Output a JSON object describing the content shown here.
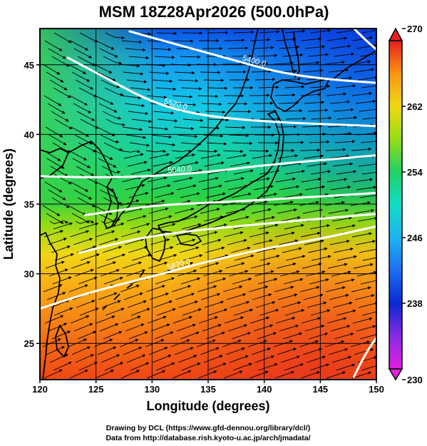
{
  "chart_data": {
    "type": "heatmap",
    "title": "MSM 18Z28Apr2026 (500.0hPa)",
    "xlabel": "Longitude (degrees)",
    "ylabel": "Latitude  (degrees)",
    "xlim": [
      120,
      150
    ],
    "ylim": [
      22.4,
      47.6
    ],
    "x_ticks": [
      120,
      125,
      130,
      135,
      140,
      145,
      150
    ],
    "y_ticks": [
      25,
      30,
      35,
      40,
      45
    ],
    "grid": true,
    "colorbar": {
      "min": 230,
      "max": 270,
      "ticks": [
        230,
        238,
        246,
        254,
        262,
        270
      ],
      "placement": "right",
      "colors": [
        "#e020e0",
        "#8a2be2",
        "#0a28d2",
        "#1e6ef0",
        "#1eb4f0",
        "#14dcc8",
        "#1ed264",
        "#96dc14",
        "#f0d714",
        "#fa9614",
        "#f55514",
        "#e61e1e"
      ]
    },
    "contours": [
      {
        "label": "5400.0",
        "lat": [
          47.4,
          46.5,
          45.4,
          44.5,
          44.0,
          43.7
        ],
        "lon": [
          128.0,
          132.0,
          137.0,
          141.0,
          145.0,
          150.0
        ]
      },
      {
        "label": "5520.0",
        "lat": [
          45.5,
          44.0,
          42.3,
          41.4,
          40.9,
          40.6
        ],
        "lon": [
          122.5,
          126.0,
          130.0,
          134.0,
          140.0,
          150.0
        ]
      },
      {
        "label": "5640.0",
        "lat": [
          37.0,
          36.9,
          37.0,
          37.3,
          37.8,
          38.5
        ],
        "lon": [
          120.0,
          125.0,
          130.0,
          135.0,
          140.0,
          150.0
        ]
      },
      {
        "label": "",
        "lat": [
          34.2,
          34.9,
          35.1,
          35.3,
          35.8
        ],
        "lon": [
          124.0,
          130.0,
          135.0,
          140.0,
          150.0
        ]
      },
      {
        "label": "",
        "lat": [
          31.5,
          32.8,
          33.6,
          34.3
        ],
        "lon": [
          123.5,
          130.0,
          140.0,
          150.0
        ]
      },
      {
        "label": "5820.0",
        "lat": [
          27.5,
          28.8,
          29.8,
          30.9,
          31.8,
          32.5,
          33.4
        ],
        "lon": [
          120.0,
          125.0,
          130.0,
          135.0,
          140.0,
          145.0,
          150.0
        ]
      },
      {
        "label": "",
        "lat": [
          22.6,
          23.6,
          24.6,
          25.4
        ],
        "lon": [
          148.0,
          148.6,
          149.3,
          150.0
        ]
      },
      {
        "label": "",
        "lat": [
          47.6,
          46.8,
          46.1
        ],
        "lon": [
          148.0,
          149.0,
          150.0
        ]
      }
    ]
  },
  "credits": {
    "line1": "Drawing by DCL (https://www.gfd-dennou.org/library/dcl/)",
    "line2": "Data from http://database.rish.kyoto-u.ac.jp/arch/jmadata/"
  }
}
